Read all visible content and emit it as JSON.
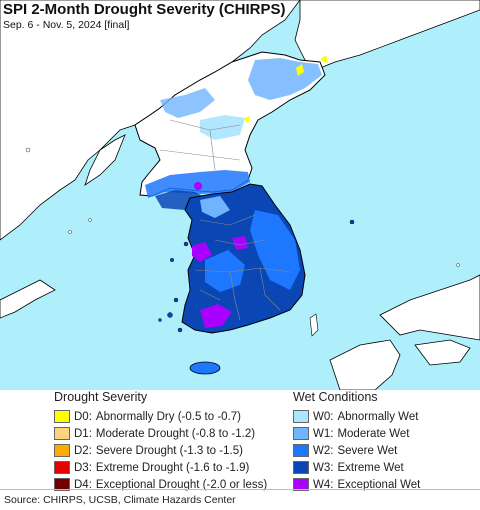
{
  "title": "SPI 2-Month Drought Severity (CHIRPS)",
  "subtitle": "Sep. 6 - Nov. 5, 2024 [final]",
  "colors": {
    "sea": "#aeeffb",
    "land": "#ffffff",
    "border": "#000000",
    "admin_border": "#8a8a8a"
  },
  "drought_legend": {
    "heading": "Drought Severity",
    "items": [
      {
        "code": "D0:",
        "desc": "Abnormally Dry (-0.5 to -0.7)",
        "color": "#ffff00"
      },
      {
        "code": "D1:",
        "desc": "Moderate Drought (-0.8 to -1.2)",
        "color": "#fcd37f"
      },
      {
        "code": "D2:",
        "desc": "Severe Drought (-1.3 to -1.5)",
        "color": "#ffaa00"
      },
      {
        "code": "D3:",
        "desc": "Extreme Drought (-1.6 to -1.9)",
        "color": "#e60000"
      },
      {
        "code": "D4:",
        "desc": "Exceptional Drought (-2.0 or less)",
        "color": "#730000"
      }
    ]
  },
  "wet_legend": {
    "heading": "Wet Conditions",
    "items": [
      {
        "code": "W0:",
        "desc": "Abnormally Wet",
        "color": "#aae6ff"
      },
      {
        "code": "W1:",
        "desc": "Moderate Wet",
        "color": "#70b4ff"
      },
      {
        "code": "W2:",
        "desc": "Severe Wet",
        "color": "#1e78ff"
      },
      {
        "code": "W3:",
        "desc": "Extreme Wet",
        "color": "#0a46b4"
      },
      {
        "code": "W4:",
        "desc": "Exceptional Wet",
        "color": "#aa00ff"
      }
    ]
  },
  "source": "Source: CHIRPS, UCSB, Climate Hazards Center"
}
